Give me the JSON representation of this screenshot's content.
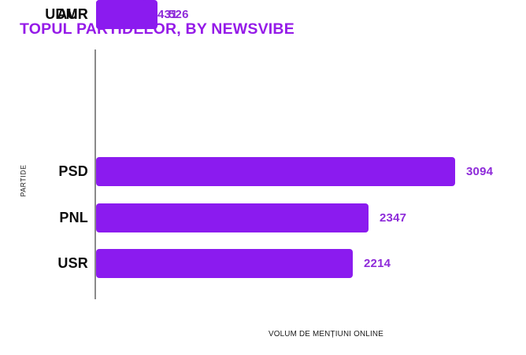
{
  "title": "TOPUL PARTIDELOR, BY NEWSVIBE",
  "colors": {
    "bar": "#8B1BEF",
    "title": "#951BE8",
    "value": "#8E2BD9",
    "axis": "#8a8a8a"
  },
  "chart_data": {
    "type": "bar",
    "orientation": "horizontal",
    "title": "TOPUL PARTIDELOR, BY NEWSVIBE",
    "categories": [
      "PSD",
      "PNL",
      "USR",
      "UDMR",
      "AUR"
    ],
    "values": [
      3094,
      2347,
      2214,
      526,
      431
    ],
    "xlabel": "VOLUM DE MENȚIUNI ONLINE",
    "ylabel": "PARTIDE",
    "xlim": [
      0,
      3400
    ],
    "grid": false,
    "legend": false,
    "value_labels": true
  }
}
